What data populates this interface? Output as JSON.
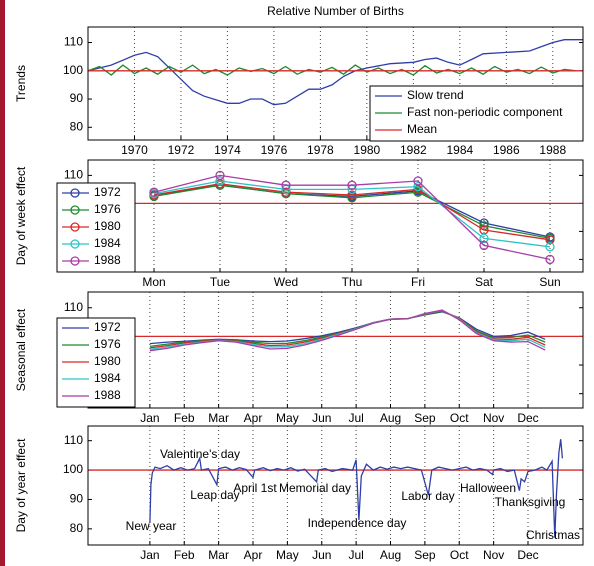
{
  "chart_data": [
    {
      "type": "line",
      "title": "Relative Number of Births",
      "ylabel": "Trends",
      "xlim": [
        1968,
        1989.3
      ],
      "xticks": [
        1970,
        1972,
        1974,
        1976,
        1978,
        1980,
        1982,
        1984,
        1986,
        1988
      ],
      "ylim": [
        75.5,
        115.5
      ],
      "yticks": [
        80,
        90,
        100,
        110
      ],
      "grid": true,
      "legend": "lower right",
      "series": [
        {
          "name": "Slow trend",
          "color": "#2f3fa8",
          "x": [
            1968,
            1969,
            1970,
            1970.5,
            1971,
            1972,
            1972.5,
            1973,
            1974,
            1974.5,
            1975,
            1975.5,
            1976,
            1976.5,
            1977,
            1977.5,
            1978,
            1978.5,
            1979,
            1979.5,
            1980,
            1981,
            1982,
            1982.5,
            1983,
            1983.5,
            1984,
            1984.5,
            1985,
            1986,
            1987,
            1988,
            1988.5,
            1989.3
          ],
          "values": [
            100,
            102,
            105.5,
            106.5,
            105,
            97,
            93,
            91,
            88.5,
            88.5,
            90,
            90,
            88,
            88.5,
            91,
            93.5,
            93.5,
            95,
            98,
            100,
            101,
            102.5,
            103,
            104,
            104.5,
            103,
            102,
            104,
            106,
            106.5,
            107,
            110,
            111,
            111
          ]
        },
        {
          "name": "Fast non-periodic component",
          "color": "#1e8a2e",
          "x": [
            1968,
            1968.5,
            1969,
            1969.5,
            1970,
            1970.5,
            1971,
            1971.5,
            1972,
            1972.5,
            1973,
            1973.5,
            1974,
            1974.5,
            1975,
            1975.5,
            1976,
            1976.5,
            1977,
            1977.5,
            1978,
            1978.5,
            1979,
            1979.5,
            1980,
            1980.5,
            1981,
            1981.5,
            1982,
            1982.5,
            1983,
            1983.5,
            1984,
            1984.5,
            1985,
            1985.5,
            1986,
            1986.5,
            1987,
            1987.5,
            1988,
            1988.5,
            1989
          ],
          "values": [
            100,
            101.5,
            98.5,
            102,
            99,
            101,
            98.8,
            101.5,
            99.5,
            102,
            99,
            100.5,
            98.5,
            101,
            99.8,
            100.8,
            99,
            101.5,
            98.8,
            100.5,
            99.5,
            101.2,
            98.8,
            102,
            99.5,
            101,
            99,
            100.5,
            98.5,
            101.8,
            99.2,
            100.5,
            99,
            101,
            98.8,
            101.5,
            99.5,
            100.5,
            99,
            101.3,
            99.2,
            100.5,
            100
          ]
        },
        {
          "name": "Mean",
          "color": "#d62a2a",
          "x": [
            1968,
            1989.3
          ],
          "values": [
            100,
            100
          ]
        }
      ]
    },
    {
      "type": "line",
      "ylabel": "Day of week effect",
      "categories": [
        "Mon",
        "Tue",
        "Wed",
        "Thu",
        "Fri",
        "Sat",
        "Sun"
      ],
      "ylim": [
        75.5,
        115.5
      ],
      "yticks": [
        80,
        90,
        100,
        110
      ],
      "grid": true,
      "legend": "upper left",
      "marker": "circle",
      "reference_line": 100,
      "reference_color": "#d62a2a",
      "series": [
        {
          "name": "1972",
          "color": "#2f3fa8",
          "values": [
            103,
            106.5,
            103.5,
            102.5,
            104.5,
            93,
            88
          ]
        },
        {
          "name": "1976",
          "color": "#1e8a2e",
          "values": [
            102.5,
            106.5,
            103.5,
            102,
            104,
            92,
            87.5
          ]
        },
        {
          "name": "1980",
          "color": "#d62a2a",
          "values": [
            103,
            107,
            104,
            103,
            105,
            90.5,
            87
          ]
        },
        {
          "name": "1984",
          "color": "#2ec4c4",
          "values": [
            103.5,
            108,
            105,
            105,
            106,
            87.5,
            84.5
          ]
        },
        {
          "name": "1988",
          "color": "#a83ca8",
          "values": [
            104,
            110,
            106.5,
            106.5,
            108,
            85,
            80
          ]
        }
      ]
    },
    {
      "type": "line",
      "ylabel": "Seasonal effect",
      "xlim": [
        -0.8,
        13.6
      ],
      "xticks": [
        {
          "value": 1,
          "label": "Jan"
        },
        {
          "value": 2,
          "label": "Feb"
        },
        {
          "value": 3,
          "label": "Mar"
        },
        {
          "value": 4,
          "label": "Apr"
        },
        {
          "value": 5,
          "label": "May"
        },
        {
          "value": 6,
          "label": "Jun"
        },
        {
          "value": 7,
          "label": "Jul"
        },
        {
          "value": 8,
          "label": "Aug"
        },
        {
          "value": 9,
          "label": "Sep"
        },
        {
          "value": 10,
          "label": "Oct"
        },
        {
          "value": 11,
          "label": "Nov"
        },
        {
          "value": 12,
          "label": "Dec"
        }
      ],
      "ylim": [
        75,
        115.5
      ],
      "yticks": [
        80,
        90,
        100,
        110
      ],
      "grid": true,
      "legend": "upper left",
      "reference_line": 100,
      "reference_color": "#d62a2a",
      "x": [
        1,
        1.5,
        2,
        2.5,
        3,
        3.5,
        4,
        4.5,
        5,
        5.5,
        6,
        6.5,
        7,
        7.5,
        8,
        8.5,
        9,
        9.5,
        10,
        10.5,
        11,
        11.5,
        12,
        12.5
      ],
      "series": [
        {
          "name": "1972",
          "color": "#2f3fa8",
          "values": [
            97.5,
            98,
            98.3,
            98.7,
            99,
            98.8,
            98.4,
            98.2,
            98.4,
            99.2,
            100.2,
            101.5,
            103,
            104.8,
            106,
            106.2,
            107.5,
            108.6,
            106.5,
            102.5,
            100,
            100.3,
            101.5,
            99
          ]
        },
        {
          "name": "1976",
          "color": "#1e8a2e",
          "values": [
            96.5,
            97.3,
            98,
            98.5,
            98.8,
            98.6,
            98,
            97.5,
            97.6,
            98.5,
            99.8,
            101.2,
            102.8,
            104.8,
            106,
            106.2,
            107.6,
            108.8,
            106.3,
            102,
            99.5,
            99.6,
            100.5,
            98
          ]
        },
        {
          "name": "1980",
          "color": "#d62a2a",
          "values": [
            96,
            96.8,
            97.7,
            98.3,
            98.7,
            98.4,
            97.6,
            96.8,
            97,
            98,
            99.4,
            101,
            102.7,
            104.8,
            106,
            106.2,
            107.8,
            109,
            106.2,
            101.6,
            99,
            99,
            99.7,
            97
          ]
        },
        {
          "name": "1984",
          "color": "#2ec4c4",
          "values": [
            95.5,
            96.3,
            97.3,
            98,
            98.6,
            98.2,
            97.2,
            96.3,
            96.4,
            97.5,
            99,
            100.8,
            102.6,
            104.7,
            106,
            106.1,
            107.9,
            109.1,
            106,
            101.3,
            98.8,
            98.5,
            99,
            96.2
          ]
        },
        {
          "name": "1988",
          "color": "#a83ca8",
          "values": [
            95,
            95.8,
            97,
            97.8,
            98.5,
            98,
            96.8,
            95.6,
            95.8,
            97,
            98.6,
            100.5,
            102.5,
            104.6,
            106,
            106.1,
            108,
            109.2,
            105.8,
            101,
            98.5,
            98,
            98.2,
            95.2
          ]
        }
      ]
    },
    {
      "type": "line",
      "ylabel": "Day of year effect",
      "xlim": [
        -0.8,
        13.6
      ],
      "xticks": [
        {
          "value": 1,
          "label": "Jan"
        },
        {
          "value": 2,
          "label": "Feb"
        },
        {
          "value": 3,
          "label": "Mar"
        },
        {
          "value": 4,
          "label": "Apr"
        },
        {
          "value": 5,
          "label": "May"
        },
        {
          "value": 6,
          "label": "Jun"
        },
        {
          "value": 7,
          "label": "Jul"
        },
        {
          "value": 8,
          "label": "Aug"
        },
        {
          "value": 9,
          "label": "Sep"
        },
        {
          "value": 10,
          "label": "Oct"
        },
        {
          "value": 11,
          "label": "Nov"
        },
        {
          "value": 12,
          "label": "Dec"
        }
      ],
      "ylim": [
        74.5,
        115
      ],
      "yticks": [
        80,
        90,
        100,
        110
      ],
      "grid": true,
      "reference_line": 100,
      "reference_color": "#d62a2a",
      "annotations": [
        "New year",
        "Valentine's day",
        "Leap day",
        "April 1st",
        "Memorial day",
        "Independence day",
        "Labor day",
        "Halloween",
        "Thanksgiving",
        "Christmas"
      ],
      "series": [
        {
          "color": "#2f3fa8",
          "x": [
            1,
            1.03,
            1.07,
            1.15,
            1.3,
            1.5,
            1.7,
            1.9,
            2.1,
            2.3,
            2.45,
            2.5,
            2.7,
            2.95,
            3.0,
            3.2,
            3.4,
            3.6,
            3.8,
            4.0,
            4.05,
            4.3,
            4.5,
            4.7,
            4.9,
            5.1,
            5.3,
            5.5,
            5.85,
            5.9,
            6.1,
            6.3,
            6.6,
            6.9,
            7.0,
            7.08,
            7.15,
            7.3,
            7.5,
            7.7,
            7.9,
            8.1,
            8.3,
            8.5,
            8.7,
            8.9,
            9.1,
            9.2,
            9.4,
            9.6,
            9.8,
            10,
            10.2,
            10.4,
            10.6,
            10.8,
            10.97,
            11.0,
            11.2,
            11.4,
            11.6,
            11.75,
            11.8,
            11.9,
            12.0,
            12.2,
            12.4,
            12.55,
            12.7,
            12.78,
            12.83,
            12.9,
            12.95,
            13.0
          ],
          "values": [
            82,
            95,
            99,
            101,
            100.5,
            101.5,
            100,
            100.8,
            100,
            100.5,
            104,
            100,
            100.5,
            95,
            100.5,
            101,
            100,
            100.8,
            100.2,
            97.5,
            100,
            100.8,
            99.8,
            100.5,
            100,
            100.8,
            99.7,
            100.3,
            96,
            100,
            100.5,
            99.5,
            100.5,
            100,
            103.5,
            83,
            98,
            102,
            100,
            101,
            100.3,
            101,
            100.5,
            101,
            100.5,
            100,
            91.5,
            100,
            101,
            100.5,
            100,
            100.5,
            101,
            100,
            100.5,
            100,
            98.5,
            100,
            100.5,
            99.5,
            100,
            93,
            97,
            96,
            99.5,
            100,
            101,
            100,
            103,
            77,
            92,
            106,
            110.5,
            104
          ]
        }
      ]
    }
  ]
}
